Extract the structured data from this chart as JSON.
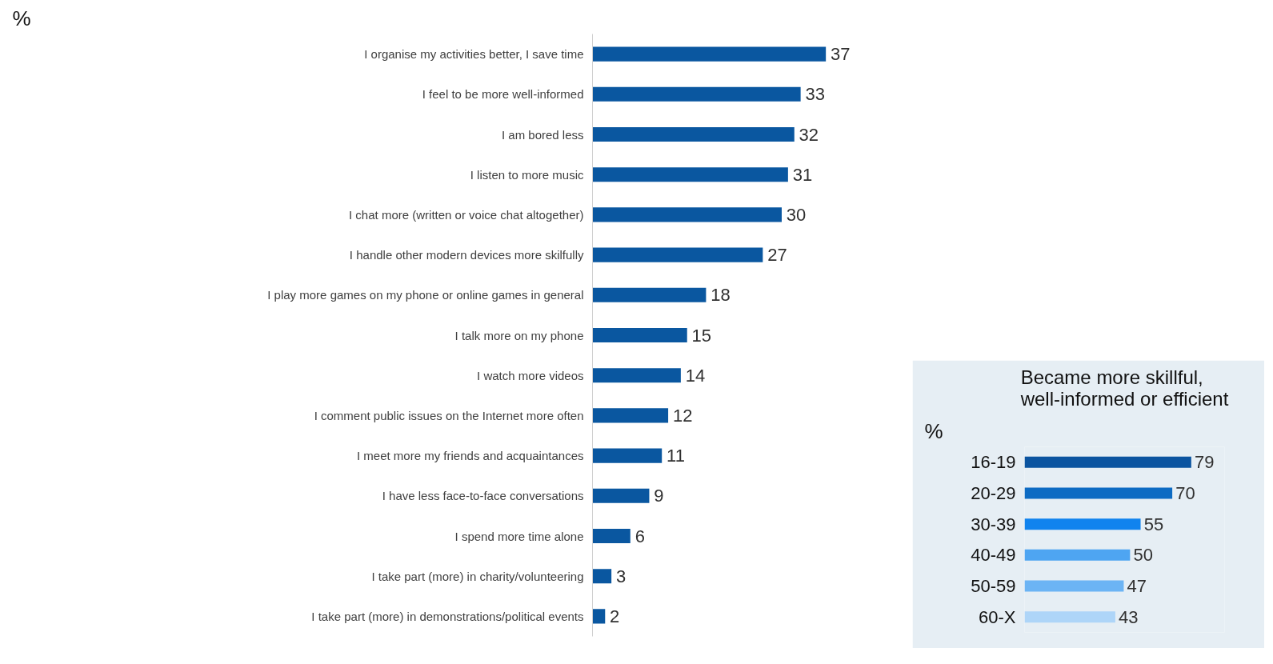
{
  "chart_data": [
    {
      "type": "bar",
      "orientation": "horizontal",
      "annotations": [
        "%"
      ],
      "color": "#0a57a0",
      "data_labels": true,
      "categories": [
        "I organise my activities better, I save time",
        "I feel to be more well-informed",
        "I am bored less",
        "I listen to more music",
        "I chat more (written or voice chat altogether)",
        "I handle other modern devices more skilfully",
        "I play more games on my phone or online games in general",
        "I talk more on my phone",
        "I watch more videos",
        "I comment public issues on the Internet more often",
        "I meet more my friends and acquaintances",
        "I have less face-to-face conversations",
        "I spend more time alone",
        "I take part (more) in charity/volunteering",
        "I take part (more) in demonstrations/political events"
      ],
      "values": [
        37,
        33,
        32,
        31,
        30,
        27,
        18,
        15,
        14,
        12,
        11,
        9,
        6,
        3,
        2
      ]
    },
    {
      "type": "bar",
      "orientation": "horizontal",
      "title": "Became more skillful,\nwell-informed or efficient",
      "annotations": [
        "%"
      ],
      "data_labels": true,
      "categories": [
        "16-19",
        "20-29",
        "30-39",
        "40-49",
        "50-59",
        "60-X"
      ],
      "values": [
        79,
        70,
        55,
        50,
        47,
        43
      ],
      "colors": [
        "#0b54a0",
        "#0d6bc3",
        "#1083ee",
        "#4ea5f2",
        "#6cb4f4",
        "#aed5f8"
      ]
    }
  ]
}
